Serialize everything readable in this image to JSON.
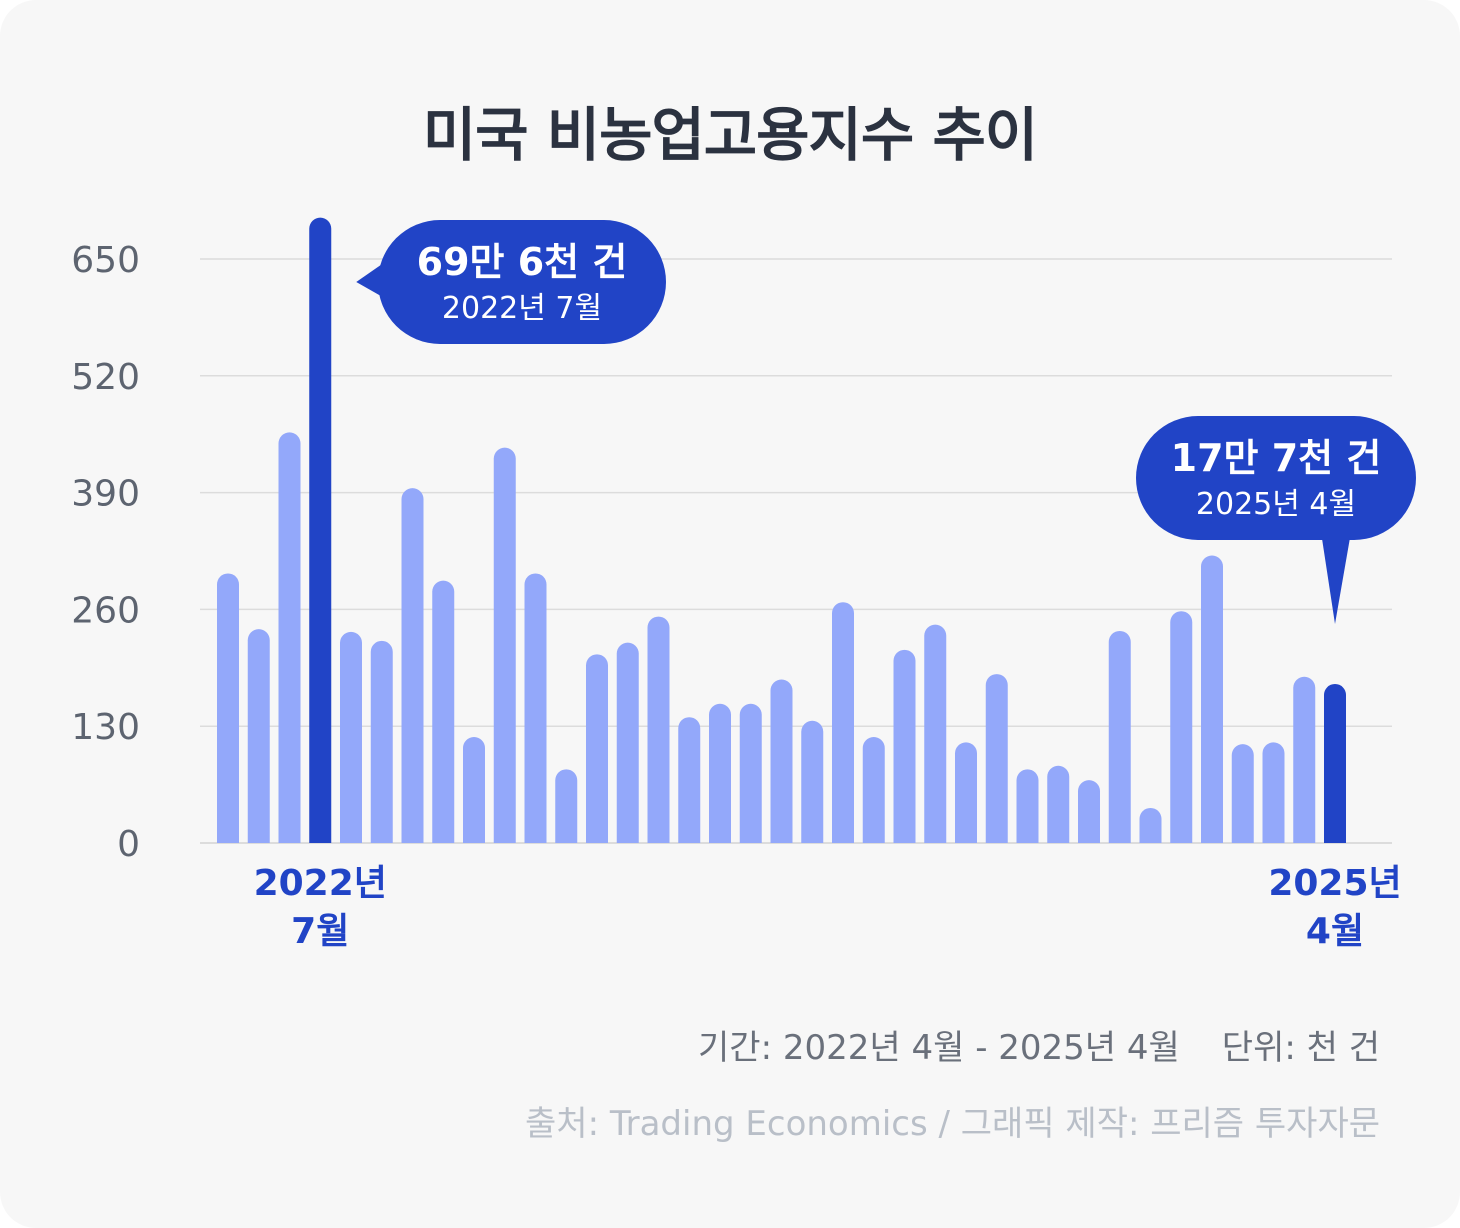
{
  "title": "미국 비농업고용지수 추이",
  "chart_data": {
    "type": "bar",
    "ylim": [
      0,
      690
    ],
    "yticks": [
      0,
      130,
      260,
      390,
      520,
      650
    ],
    "grid": true,
    "values": [
      300,
      238,
      457,
      696,
      235,
      225,
      395,
      292,
      118,
      440,
      300,
      82,
      210,
      223,
      252,
      140,
      155,
      155,
      182,
      136,
      268,
      118,
      215,
      243,
      112,
      188,
      82,
      86,
      70,
      236,
      39,
      258,
      320,
      110,
      112,
      185,
      177
    ],
    "highlight_indices": [
      3,
      36
    ],
    "x_labels": [
      {
        "index": 3,
        "line1": "2022년",
        "line2": "7월"
      },
      {
        "index": 36,
        "line1": "2025년",
        "line2": "4월"
      }
    ],
    "callouts": [
      {
        "index": 3,
        "value_label": "69만 6천 건",
        "date_label": "2022년 7월"
      },
      {
        "index": 36,
        "value_label": "17만 7천 건",
        "date_label": "2025년 4월"
      }
    ],
    "colors": {
      "bar": "#93a8fa",
      "highlight": "#2144c6",
      "grid": "#dcdcdc",
      "tick_text": "#5d6470",
      "callout_bg": "#2144c6",
      "callout_text": "#ffffff"
    }
  },
  "footer": {
    "period": "기간: 2022년 4월 - 2025년 4월",
    "unit": "단위: 천 건",
    "source": "출처: Trading Economics / 그래픽 제작: 프리즘 투자자문"
  }
}
